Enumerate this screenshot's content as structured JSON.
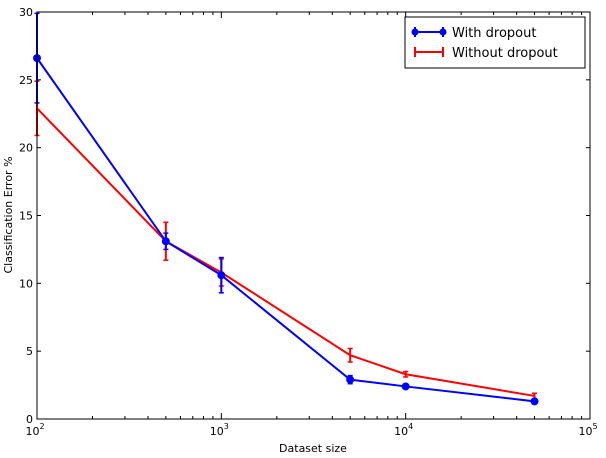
{
  "chart_data": {
    "type": "line",
    "title": "",
    "xlabel": "Dataset size",
    "ylabel": "Classification Error %",
    "xscale": "log",
    "xlim": [
      100,
      100000
    ],
    "ylim": [
      0,
      30
    ],
    "x_ticks": [
      {
        "value": 100,
        "base": "10",
        "exp": "2"
      },
      {
        "value": 1000,
        "base": "10",
        "exp": "3"
      },
      {
        "value": 10000,
        "base": "10",
        "exp": "4"
      },
      {
        "value": 100000,
        "base": "10",
        "exp": "5"
      }
    ],
    "y_ticks": [
      "0",
      "5",
      "10",
      "15",
      "20",
      "25",
      "30"
    ],
    "grid": false,
    "legend_position": "top-right",
    "series": [
      {
        "name": "With dropout",
        "color": "#0000ff",
        "marker": "circle",
        "x": [
          100,
          500,
          1000,
          5000,
          10000,
          50000
        ],
        "y": [
          26.6,
          13.1,
          10.6,
          2.9,
          2.4,
          1.3
        ],
        "err": [
          3.3,
          0.6,
          1.3,
          0.3,
          0.15,
          0.15
        ]
      },
      {
        "name": "Without dropout",
        "color": "#ff0000",
        "marker": "none",
        "x": [
          100,
          500,
          1000,
          5000,
          10000,
          50000
        ],
        "y": [
          22.9,
          13.1,
          10.8,
          4.7,
          3.3,
          1.7
        ],
        "err": [
          2.0,
          1.4,
          1.0,
          0.5,
          0.2,
          0.2
        ]
      }
    ]
  }
}
